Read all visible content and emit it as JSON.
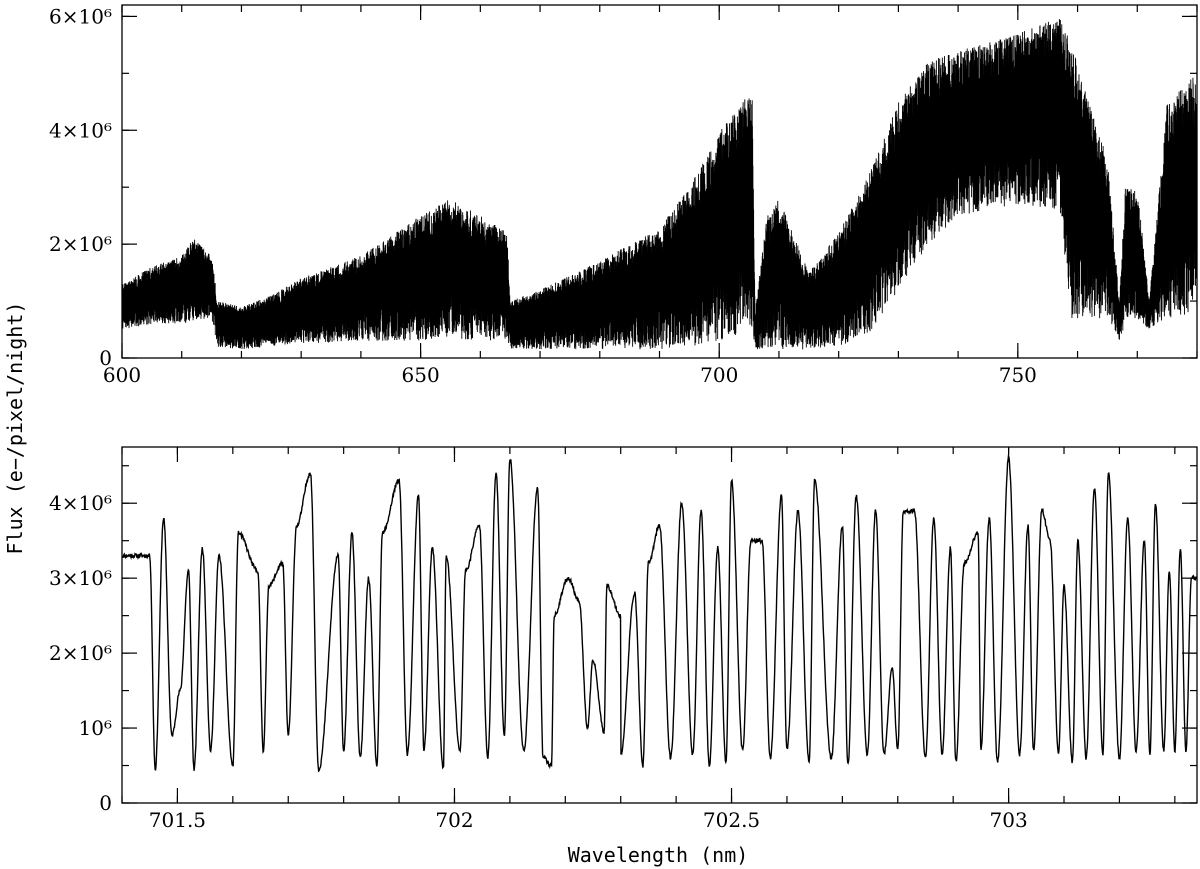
{
  "chart_data": [
    {
      "type": "line",
      "title": "",
      "xlabel": "",
      "ylabel": "Flux (e−/pixel/night)",
      "xlim": [
        600,
        780
      ],
      "ylim": [
        0,
        6200000
      ],
      "grid": false,
      "legend": "none",
      "line_color": "#000000",
      "x_ticks": [
        {
          "value": 600,
          "label": "600"
        },
        {
          "value": 650,
          "label": "650"
        },
        {
          "value": 700,
          "label": "700"
        },
        {
          "value": 750,
          "label": "750"
        }
      ],
      "y_ticks": [
        {
          "value": 0,
          "label": "0"
        },
        {
          "value": 2000000,
          "label": "2×10⁶"
        },
        {
          "value": 4000000,
          "label": "4×10⁶"
        },
        {
          "value": 6000000,
          "label": "6×10⁶"
        }
      ],
      "x_minor_step": 10,
      "y_minor_step": 1000000,
      "envelope": {
        "x": [
          600,
          605,
          610,
          612,
          615,
          616,
          620,
          625,
          630,
          640,
          650,
          655,
          660,
          664.5,
          665,
          670,
          680,
          690,
          695,
          700,
          705.5,
          706,
          708,
          710,
          715,
          720,
          725,
          730,
          735,
          740,
          750,
          757,
          759,
          762,
          765,
          767,
          768,
          770,
          772,
          775,
          780
        ],
        "upper": [
          1300000,
          1600000,
          1800000,
          2100000,
          1800000,
          1000000,
          900000,
          1100000,
          1400000,
          1800000,
          2500000,
          2800000,
          2500000,
          2200000,
          1000000,
          1200000,
          1700000,
          2300000,
          3000000,
          4000000,
          4700000,
          800000,
          2500000,
          2800000,
          1500000,
          2200000,
          3200000,
          4500000,
          5200000,
          5400000,
          5700000,
          6000000,
          5500000,
          4500000,
          3500000,
          1000000,
          3000000,
          3000000,
          1000000,
          4500000,
          5000000
        ],
        "lower": [
          500000,
          600000,
          600000,
          650000,
          700000,
          200000,
          150000,
          200000,
          250000,
          300000,
          300000,
          350000,
          300000,
          300000,
          150000,
          150000,
          150000,
          150000,
          200000,
          300000,
          500000,
          150000,
          150000,
          150000,
          150000,
          200000,
          400000,
          1200000,
          2000000,
          2500000,
          2700000,
          2600000,
          700000,
          700000,
          700000,
          300000,
          600000,
          700000,
          500000,
          700000,
          800000
        ]
      }
    },
    {
      "type": "line",
      "title": "",
      "xlabel": "Wavelength (nm)",
      "ylabel": "",
      "xlim": [
        701.4,
        703.34
      ],
      "ylim": [
        0,
        4750000
      ],
      "grid": false,
      "legend": "none",
      "line_color": "#000000",
      "x_ticks": [
        {
          "value": 701.5,
          "label": "701.5"
        },
        {
          "value": 702,
          "label": "702"
        },
        {
          "value": 702.5,
          "label": "702.5"
        },
        {
          "value": 703,
          "label": "703"
        }
      ],
      "y_ticks": [
        {
          "value": 0,
          "label": "0"
        },
        {
          "value": 1000000,
          "label": "10⁶"
        },
        {
          "value": 2000000,
          "label": "2×10⁶"
        },
        {
          "value": 3000000,
          "label": "3×10⁶"
        },
        {
          "value": 4000000,
          "label": "4×10⁶"
        }
      ],
      "x_minor_step": 0.1,
      "y_minor_step": 500000,
      "peaks": [
        [
          701.45,
          3300000
        ],
        [
          701.475,
          3800000
        ],
        [
          701.505,
          1500000
        ],
        [
          701.52,
          3100000
        ],
        [
          701.545,
          3400000
        ],
        [
          701.575,
          3300000
        ],
        [
          701.61,
          3600000
        ],
        [
          701.645,
          3100000
        ],
        [
          701.665,
          2900000
        ],
        [
          701.69,
          3200000
        ],
        [
          701.715,
          3700000
        ],
        [
          701.74,
          4400000
        ],
        [
          701.79,
          3300000
        ],
        [
          701.815,
          3600000
        ],
        [
          701.845,
          3000000
        ],
        [
          701.87,
          3600000
        ],
        [
          701.9,
          4300000
        ],
        [
          701.935,
          4100000
        ],
        [
          701.96,
          3400000
        ],
        [
          701.985,
          3300000
        ],
        [
          702.02,
          3100000
        ],
        [
          702.045,
          3700000
        ],
        [
          702.075,
          4400000
        ],
        [
          702.1,
          4600000
        ],
        [
          702.15,
          4200000
        ],
        [
          702.18,
          2500000
        ],
        [
          702.205,
          3000000
        ],
        [
          702.225,
          2700000
        ],
        [
          702.25,
          1900000
        ],
        [
          702.275,
          2900000
        ],
        [
          702.3,
          2500000
        ],
        [
          702.325,
          2800000
        ],
        [
          702.35,
          3200000
        ],
        [
          702.37,
          3700000
        ],
        [
          702.41,
          4000000
        ],
        [
          702.445,
          3900000
        ],
        [
          702.475,
          3400000
        ],
        [
          702.5,
          4300000
        ],
        [
          702.535,
          3500000
        ],
        [
          702.555,
          3500000
        ],
        [
          702.59,
          4100000
        ],
        [
          702.62,
          3900000
        ],
        [
          702.65,
          4300000
        ],
        [
          702.7,
          3700000
        ],
        [
          702.725,
          4100000
        ],
        [
          702.76,
          3900000
        ],
        [
          702.79,
          1800000
        ],
        [
          702.81,
          3900000
        ],
        [
          702.83,
          3900000
        ],
        [
          702.865,
          3800000
        ],
        [
          702.895,
          3400000
        ],
        [
          702.92,
          3200000
        ],
        [
          702.945,
          3600000
        ],
        [
          702.965,
          3800000
        ],
        [
          703,
          4600000
        ],
        [
          703.035,
          3700000
        ],
        [
          703.06,
          3900000
        ],
        [
          703.075,
          3500000
        ],
        [
          703.1,
          2900000
        ],
        [
          703.125,
          3500000
        ],
        [
          703.155,
          4200000
        ],
        [
          703.18,
          4400000
        ],
        [
          703.215,
          3800000
        ],
        [
          703.245,
          3500000
        ],
        [
          703.265,
          4000000
        ],
        [
          703.29,
          3100000
        ],
        [
          703.31,
          3400000
        ],
        [
          703.33,
          3000000
        ]
      ],
      "troughs": [
        [
          701.46,
          450000
        ],
        [
          701.49,
          900000
        ],
        [
          701.53,
          450000
        ],
        [
          701.56,
          700000
        ],
        [
          701.6,
          500000
        ],
        [
          701.655,
          700000
        ],
        [
          701.7,
          900000
        ],
        [
          701.755,
          450000
        ],
        [
          701.8,
          700000
        ],
        [
          701.83,
          600000
        ],
        [
          701.86,
          500000
        ],
        [
          701.915,
          650000
        ],
        [
          701.945,
          700000
        ],
        [
          701.98,
          450000
        ],
        [
          702.01,
          700000
        ],
        [
          702.06,
          600000
        ],
        [
          702.09,
          900000
        ],
        [
          702.125,
          700000
        ],
        [
          702.16,
          600000
        ],
        [
          702.175,
          500000
        ],
        [
          702.24,
          1000000
        ],
        [
          702.27,
          950000
        ],
        [
          702.3,
          650000
        ],
        [
          702.34,
          500000
        ],
        [
          702.39,
          600000
        ],
        [
          702.43,
          650000
        ],
        [
          702.46,
          500000
        ],
        [
          702.49,
          550000
        ],
        [
          702.52,
          700000
        ],
        [
          702.57,
          600000
        ],
        [
          702.6,
          700000
        ],
        [
          702.64,
          550000
        ],
        [
          702.68,
          600000
        ],
        [
          702.71,
          500000
        ],
        [
          702.745,
          650000
        ],
        [
          702.775,
          650000
        ],
        [
          702.8,
          700000
        ],
        [
          702.85,
          600000
        ],
        [
          702.88,
          650000
        ],
        [
          702.905,
          550000
        ],
        [
          702.95,
          700000
        ],
        [
          702.98,
          550000
        ],
        [
          703.02,
          650000
        ],
        [
          703.045,
          700000
        ],
        [
          703.09,
          650000
        ],
        [
          703.115,
          550000
        ],
        [
          703.14,
          600000
        ],
        [
          703.17,
          650000
        ],
        [
          703.2,
          600000
        ],
        [
          703.23,
          700000
        ],
        [
          703.255,
          650000
        ],
        [
          703.28,
          700000
        ],
        [
          703.3,
          700000
        ],
        [
          703.32,
          700000
        ]
      ]
    }
  ]
}
